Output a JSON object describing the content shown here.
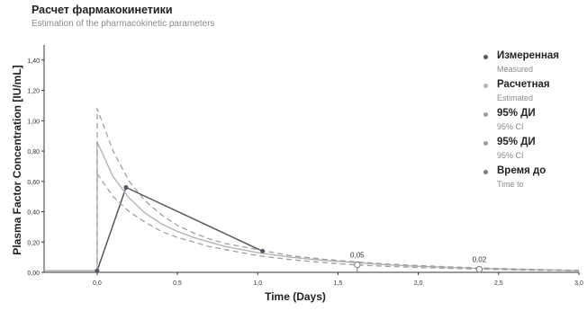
{
  "title": "Расчет фармакокинетики",
  "subtitle": "Estimation of the pharmacokinetic parameters",
  "chart_data": {
    "type": "line",
    "xlabel": "Time (Days)",
    "ylabel": "Plasma Factor Concentration [IU/mL]",
    "xlim": [
      -0.33,
      3.0
    ],
    "ylim": [
      0.0,
      1.5
    ],
    "xticks": [
      0.0,
      0.5,
      1.0,
      1.5,
      2.0,
      2.5,
      3.0
    ],
    "xtick_labels": [
      "0,0",
      "0,5",
      "1,0",
      "1,5",
      "2,0",
      "2,5",
      "3,0"
    ],
    "yticks": [
      0.0,
      0.2,
      0.4,
      0.6,
      0.8,
      1.0,
      1.2,
      1.4
    ],
    "ytick_labels": [
      "0,00",
      "0,20",
      "0,40",
      "0,60",
      "0,80",
      "1,00",
      "1,20",
      "1,40"
    ],
    "grid": false,
    "legend_position": "right",
    "colors": {
      "measured": "#555560",
      "estimated": "#b4b4b4",
      "ci": "#a0a0a0",
      "time_to": "#7a7a7a",
      "axis": "#333333",
      "background": "#ffffff"
    },
    "legend": [
      {
        "label": "Измеренная",
        "sublabel": "Measured",
        "color": "#555560"
      },
      {
        "label": "Расчетная",
        "sublabel": "Estimated",
        "color": "#b4b4b4"
      },
      {
        "label": "95% ДИ",
        "sublabel": "95% CI",
        "color": "#a0a0a0"
      },
      {
        "label": "95% ДИ",
        "sublabel": "95% CI",
        "color": "#a0a0a0"
      },
      {
        "label": "Время до",
        "sublabel": "Time to",
        "color": "#7a7a7a"
      }
    ],
    "series": [
      {
        "name": "Измеренная",
        "style": "solid",
        "x": [
          -0.33,
          0.0,
          0.18,
          1.03
        ],
        "y": [
          0.01,
          0.01,
          0.56,
          0.14
        ]
      },
      {
        "name": "Расчетная",
        "style": "solid",
        "x": [
          -0.33,
          0.0,
          0.0,
          0.1,
          0.2,
          0.3,
          0.4,
          0.5,
          0.6,
          0.7,
          0.8,
          0.9,
          1.0,
          1.2,
          1.4,
          1.6,
          1.8,
          2.0,
          2.2,
          2.4,
          2.6,
          2.8,
          3.0
        ],
        "y": [
          0.01,
          0.01,
          0.86,
          0.63,
          0.49,
          0.39,
          0.32,
          0.27,
          0.23,
          0.2,
          0.17,
          0.15,
          0.13,
          0.1,
          0.08,
          0.065,
          0.05,
          0.04,
          0.032,
          0.025,
          0.02,
          0.016,
          0.012
        ]
      },
      {
        "name": "95% ДИ",
        "style": "dashed",
        "x": [
          0.0,
          0.0,
          0.1,
          0.2,
          0.3,
          0.4,
          0.5,
          0.6,
          0.7,
          0.8,
          0.9,
          1.0,
          1.2,
          1.4,
          1.6,
          1.8,
          2.0,
          2.2,
          2.4,
          2.6,
          2.8,
          3.0
        ],
        "y": [
          0.0,
          1.08,
          0.8,
          0.6,
          0.47,
          0.38,
          0.31,
          0.26,
          0.22,
          0.19,
          0.17,
          0.15,
          0.11,
          0.088,
          0.07,
          0.056,
          0.045,
          0.036,
          0.029,
          0.023,
          0.018,
          0.014
        ]
      },
      {
        "name": "95% ДИ",
        "style": "dashed",
        "x": [
          0.0,
          0.1,
          0.2,
          0.3,
          0.4,
          0.5,
          0.6,
          0.7,
          0.8,
          0.9,
          1.0,
          1.2,
          1.4,
          1.6,
          1.8,
          2.0,
          2.2,
          2.4,
          2.6,
          2.8,
          3.0
        ],
        "y": [
          0.65,
          0.5,
          0.4,
          0.33,
          0.27,
          0.23,
          0.2,
          0.17,
          0.15,
          0.13,
          0.11,
          0.085,
          0.065,
          0.05,
          0.04,
          0.032,
          0.026,
          0.02,
          0.016,
          0.013,
          0.01
        ]
      }
    ],
    "annotations": [
      {
        "label": "0,05",
        "x": 1.62,
        "y": 0.05
      },
      {
        "label": "0,02",
        "x": 2.38,
        "y": 0.02
      }
    ]
  }
}
